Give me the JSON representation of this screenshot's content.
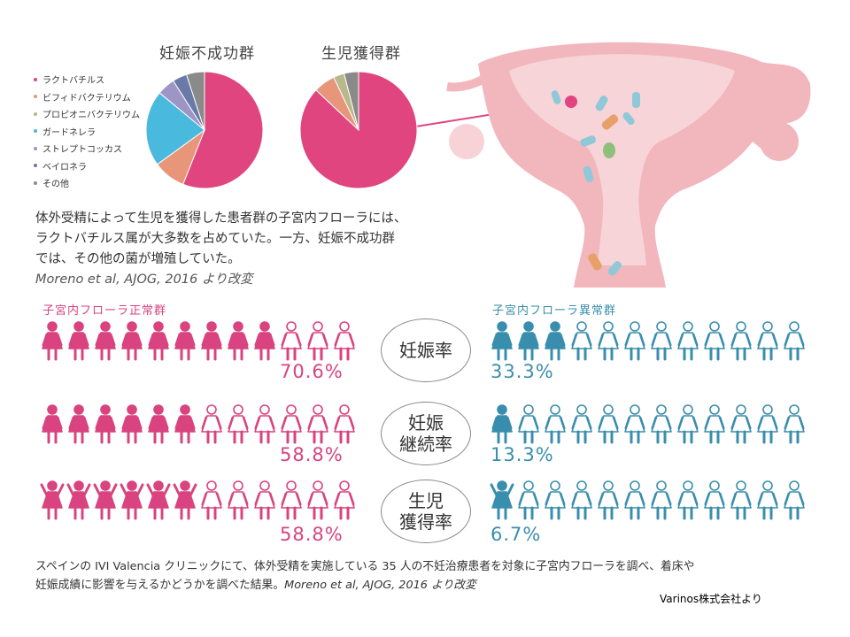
{
  "colors": {
    "pink": "#d9437f",
    "blue": "#3a8ead",
    "pie_pink": "#e0457f"
  },
  "legend": [
    {
      "label": "ラクトバチルス",
      "color": "#e0457f"
    },
    {
      "label": "ビフィドバクテリウム",
      "color": "#e8967a"
    },
    {
      "label": "プロピオニバクテリウム",
      "color": "#b7b98a"
    },
    {
      "label": "ガードネレラ",
      "color": "#4ab9de"
    },
    {
      "label": "ストレプトコッカス",
      "color": "#9d95c6"
    },
    {
      "label": "ベイロネラ",
      "color": "#6a7aa8"
    },
    {
      "label": "その他",
      "color": "#8a8a8a"
    }
  ],
  "description": {
    "line1": "体外受精によって生児を獲得した患者群の子宮内フローラには、",
    "line2": "ラクトバチルス属が大多数を占めていた。一方、妊娠不成功群",
    "line3": "では、その他の菌が増殖していた。",
    "citation": "Moreno et al, AJOG, 2016 より改変"
  },
  "groups": {
    "normal": "子宮内フローラ正常群",
    "abnormal": "子宮内フローラ異常群"
  },
  "footer": {
    "line1": "スペインの IVI Valencia クリニックにて、体外受精を実施している 35 人の不妊治療患者を対象に子宮内フローラを調べ、着床や",
    "line2": "妊娠成績に影響を与えるかどうかを調べた結果。",
    "citation": "Moreno et al, AJOG, 2016 より改変"
  },
  "credit": "Varinos株式会社より",
  "chart_data": [
    {
      "type": "pie",
      "title": "妊娠不成功群",
      "labels": [
        "ラクトバチルス",
        "ビフィドバクテリウム",
        "ガードネレラ",
        "ストレプトコッカス",
        "ベイロネラ",
        "その他"
      ],
      "values": [
        56,
        9,
        21,
        5,
        4,
        5
      ],
      "colors": [
        "#e0457f",
        "#e8967a",
        "#4ab9de",
        "#9d95c6",
        "#6a7aa8",
        "#8a8a8a"
      ]
    },
    {
      "type": "pie",
      "title": "生児獲得群",
      "labels": [
        "ラクトバチルス",
        "ビフィドバクテリウム",
        "プロピオニバクテリウム",
        "その他"
      ],
      "values": [
        87,
        6,
        3,
        4
      ],
      "colors": [
        "#e0457f",
        "#e8967a",
        "#b7b98a",
        "#8a8a8a"
      ]
    },
    {
      "type": "pictogram",
      "title": "子宮内フローラ正常群 vs 子宮内フローラ異常群",
      "icons_per_row": 12,
      "rows": [
        {
          "metric_lines": [
            "妊娠率"
          ],
          "normal_pct": "70.6%",
          "normal_filled": 9,
          "abnormal_pct": "33.3%",
          "abnormal_filled": 3
        },
        {
          "metric_lines": [
            "妊娠",
            "継続率"
          ],
          "normal_pct": "58.8%",
          "normal_filled": 6,
          "abnormal_pct": "13.3%",
          "abnormal_filled": 1
        },
        {
          "metric_lines": [
            "生児",
            "獲得率"
          ],
          "normal_pct": "58.8%",
          "normal_filled": 6,
          "abnormal_pct": "6.7%",
          "abnormal_filled": 1,
          "arms_up": true
        }
      ]
    }
  ]
}
